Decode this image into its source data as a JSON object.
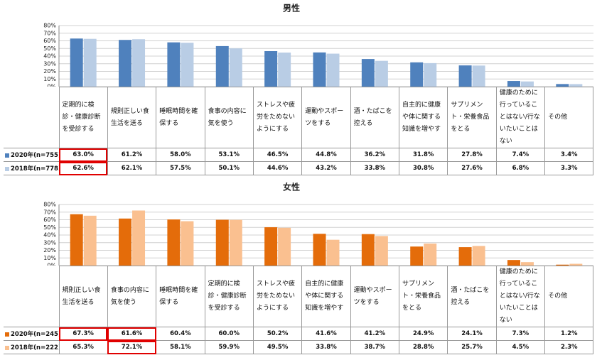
{
  "chart_data": [
    {
      "type": "bar",
      "title": "男性",
      "categories": [
        "定期的に検診・健康診断を受診する",
        "規則正しい食生活を送る",
        "睡眠時間を確保する",
        "食事の内容に気を使う",
        "ストレスや疲労をためないようにする",
        "運動やスポーツをする",
        "酒・たばこを控える",
        "自主的に健康や体に関する知識を増やす",
        "サプリメント・栄養食品をとる",
        "健康のために行っていることはない/行ないたいことはない",
        "その他"
      ],
      "series": [
        {
          "name": "2020年(n=755)",
          "color": "#4f81bd",
          "values": [
            63.0,
            61.2,
            58.0,
            53.1,
            46.5,
            44.8,
            36.2,
            31.8,
            27.8,
            7.4,
            3.4
          ],
          "value_labels": [
            "63.0%",
            "61.2%",
            "58.0%",
            "53.1%",
            "46.5%",
            "44.8%",
            "36.2%",
            "31.8%",
            "27.8%",
            "7.4%",
            "3.4%"
          ]
        },
        {
          "name": "2018年(n=778)",
          "color": "#b9cde5",
          "values": [
            62.6,
            62.1,
            57.5,
            50.1,
            44.6,
            43.2,
            33.8,
            30.8,
            27.6,
            6.8,
            3.3
          ],
          "value_labels": [
            "62.6%",
            "62.1%",
            "57.5%",
            "50.1%",
            "44.6%",
            "43.2%",
            "33.8%",
            "30.8%",
            "27.6%",
            "6.8%",
            "3.3%"
          ]
        }
      ],
      "ylim": [
        0,
        80
      ],
      "yticks": [
        {
          "value": 0,
          "label": "0%"
        },
        {
          "value": 10,
          "label": "10%"
        },
        {
          "value": 20,
          "label": "20%"
        },
        {
          "value": 30,
          "label": "30%"
        },
        {
          "value": 40,
          "label": "40%"
        },
        {
          "value": 50,
          "label": "50%"
        },
        {
          "value": 60,
          "label": "60%"
        },
        {
          "value": 70,
          "label": "70%"
        },
        {
          "value": 80,
          "label": "80%"
        }
      ],
      "grid": true,
      "highlight_color": "#e00000",
      "highlights": [
        {
          "series": 0,
          "index": 0
        },
        {
          "series": 1,
          "index": 0
        }
      ]
    },
    {
      "type": "bar",
      "title": "女性",
      "categories": [
        "規則正しい食生活を送る",
        "食事の内容に気を使う",
        "睡眠時間を確保する",
        "定期的に検診・健康診断を受診する",
        "ストレスや疲労をためないようにする",
        "自主的に健康や体に関する知識を増やす",
        "運動やスポーツをする",
        "サプリメント・栄養食品をとる",
        "酒・たばこを控える",
        "健康のために行っていることはない/行ないたいことはない",
        "その他"
      ],
      "series": [
        {
          "name": "2020年(n=245)",
          "color": "#e46c0a",
          "values": [
            67.3,
            61.6,
            60.4,
            60.0,
            50.2,
            41.6,
            41.2,
            24.9,
            24.1,
            7.3,
            1.2
          ],
          "value_labels": [
            "67.3%",
            "61.6%",
            "60.4%",
            "60.0%",
            "50.2%",
            "41.6%",
            "41.2%",
            "24.9%",
            "24.1%",
            "7.3%",
            "1.2%"
          ]
        },
        {
          "name": "2018年(n=222)",
          "color": "#fac090",
          "values": [
            65.3,
            72.1,
            58.1,
            59.9,
            49.5,
            33.8,
            38.7,
            28.8,
            25.7,
            4.5,
            2.3
          ],
          "value_labels": [
            "65.3%",
            "72.1%",
            "58.1%",
            "59.9%",
            "49.5%",
            "33.8%",
            "38.7%",
            "28.8%",
            "25.7%",
            "4.5%",
            "2.3%"
          ]
        }
      ],
      "ylim": [
        0,
        80
      ],
      "yticks": [
        {
          "value": 0,
          "label": "0%"
        },
        {
          "value": 10,
          "label": "10%"
        },
        {
          "value": 20,
          "label": "20%"
        },
        {
          "value": 30,
          "label": "30%"
        },
        {
          "value": 40,
          "label": "40%"
        },
        {
          "value": 50,
          "label": "50%"
        },
        {
          "value": 60,
          "label": "60%"
        },
        {
          "value": 70,
          "label": "70%"
        },
        {
          "value": 80,
          "label": "80%"
        }
      ],
      "grid": true,
      "highlight_color": "#e00000",
      "highlights": [
        {
          "series": 0,
          "index": 0
        },
        {
          "series": 0,
          "index": 1
        },
        {
          "series": 1,
          "index": 1
        }
      ]
    }
  ]
}
